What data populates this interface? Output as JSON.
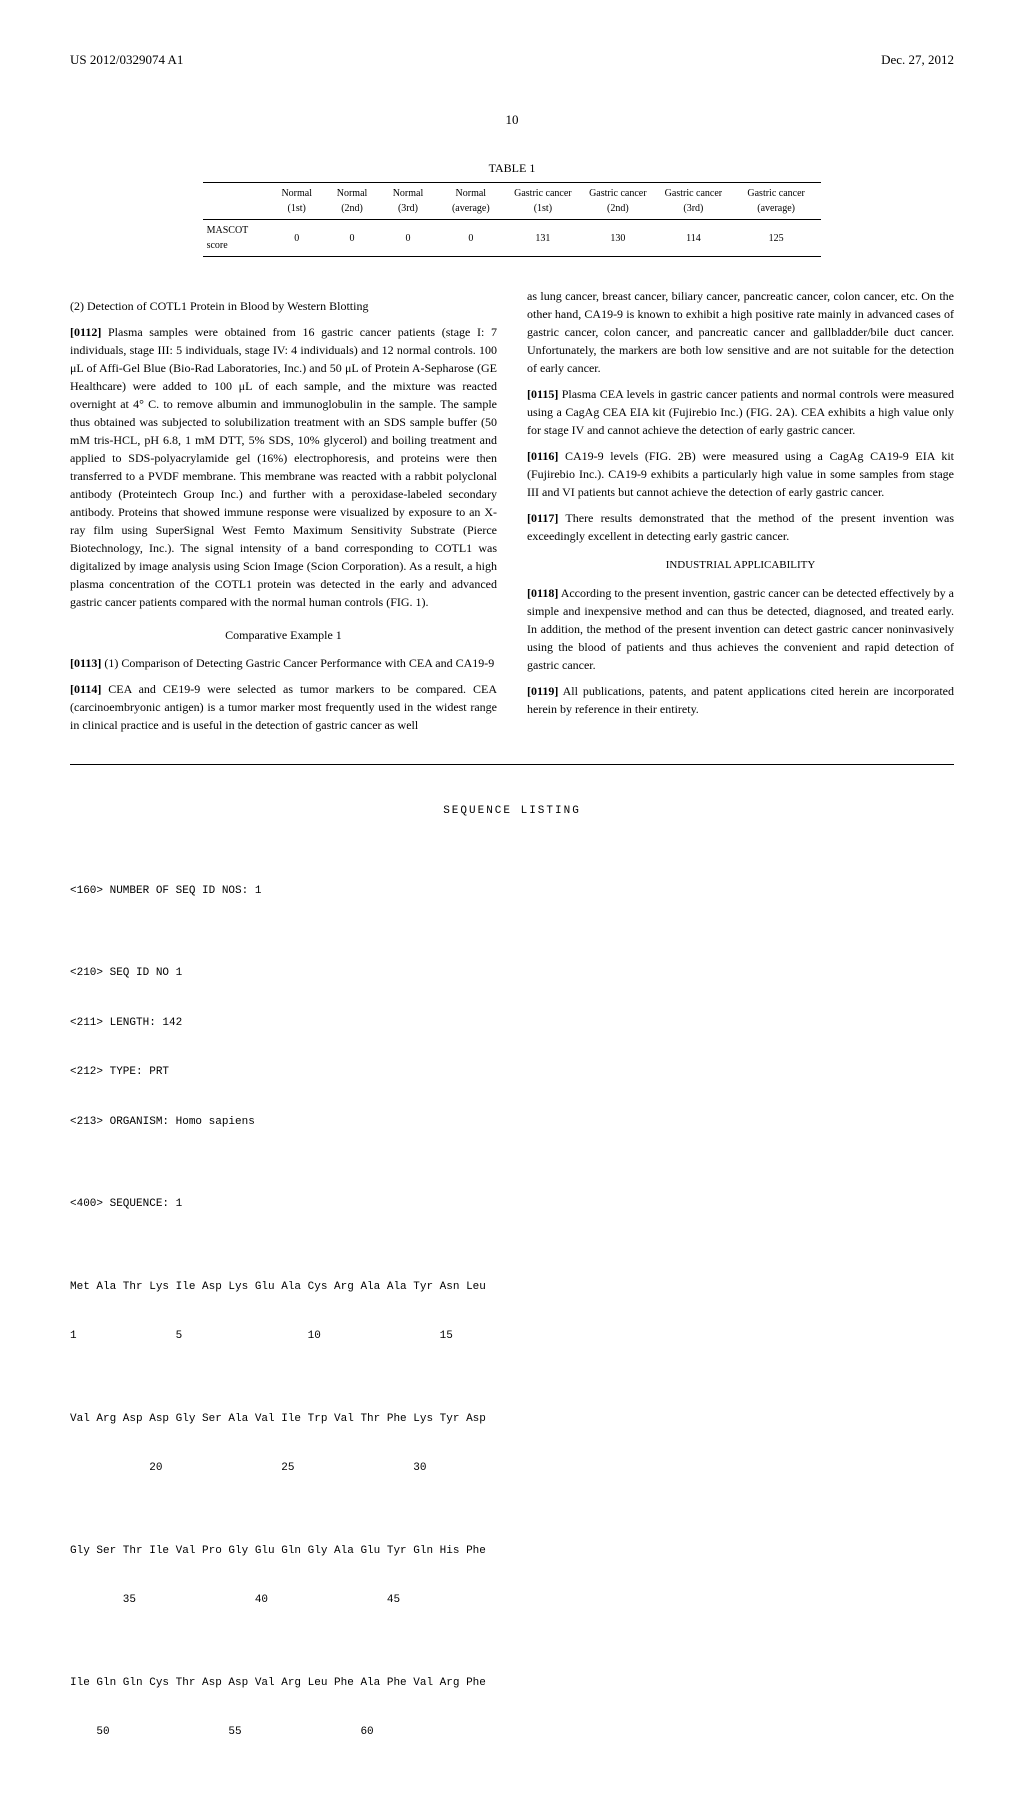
{
  "header": {
    "pub_number": "US 2012/0329074 A1",
    "pub_date": "Dec. 27, 2012",
    "page_number": "10"
  },
  "table1": {
    "caption": "TABLE 1",
    "columns": [
      "",
      "Normal (1st)",
      "Normal (2nd)",
      "Normal (3rd)",
      "Normal (average)",
      "Gastric cancer (1st)",
      "Gastric cancer (2nd)",
      "Gastric cancer (3rd)",
      "Gastric cancer (average)"
    ],
    "row_label": "MASCOT score",
    "values": [
      "0",
      "0",
      "0",
      "0",
      "131",
      "130",
      "114",
      "125"
    ]
  },
  "left_col": {
    "sec2_title": "(2) Detection of COTL1 Protein in Blood by Western Blotting",
    "p0112_num": "[0112]",
    "p0112": "Plasma samples were obtained from 16 gastric cancer patients (stage I: 7 individuals, stage III: 5 individuals, stage IV: 4 individuals) and 12 normal controls. 100 μL of Affi-Gel Blue (Bio-Rad Laboratories, Inc.) and 50 μL of Protein A-Sepharose (GE Healthcare) were added to 100 μL of each sample, and the mixture was reacted overnight at 4° C. to remove albumin and immunoglobulin in the sample. The sample thus obtained was subjected to solubilization treatment with an SDS sample buffer (50 mM tris-HCL, pH 6.8, 1 mM DTT, 5% SDS, 10% glycerol) and boiling treatment and applied to SDS-polyacrylamide gel (16%) electrophoresis, and proteins were then transferred to a PVDF membrane. This membrane was reacted with a rabbit polyclonal antibody (Proteintech Group Inc.) and further with a peroxidase-labeled secondary antibody. Proteins that showed immune response were visualized by exposure to an X-ray film using SuperSignal West Femto Maximum Sensitivity Substrate (Pierce Biotechnology, Inc.). The signal intensity of a band corresponding to COTL1 was digitalized by image analysis using Scion Image (Scion Corporation). As a result, a high plasma concentration of the COTL1 protein was detected in the early and advanced gastric cancer patients compared with the normal human controls (FIG. 1).",
    "comp_title": "Comparative Example 1",
    "p0113_num": "[0113]",
    "p0113": "(1) Comparison of Detecting Gastric Cancer Performance with CEA and CA19-9",
    "p0114_num": "[0114]",
    "p0114": "CEA and CE19-9 were selected as tumor markers to be compared. CEA (carcinoembryonic antigen) is a tumor marker most frequently used in the widest range in clinical practice and is useful in the detection of gastric cancer as well"
  },
  "right_col": {
    "p_cont": "as lung cancer, breast cancer, biliary cancer, pancreatic cancer, colon cancer, etc. On the other hand, CA19-9 is known to exhibit a high positive rate mainly in advanced cases of gastric cancer, colon cancer, and pancreatic cancer and gallbladder/bile duct cancer. Unfortunately, the markers are both low sensitive and are not suitable for the detection of early cancer.",
    "p0115_num": "[0115]",
    "p0115": "Plasma CEA levels in gastric cancer patients and normal controls were measured using a CagAg CEA EIA kit (Fujirebio Inc.) (FIG. 2A). CEA exhibits a high value only for stage IV and cannot achieve the detection of early gastric cancer.",
    "p0116_num": "[0116]",
    "p0116": "CA19-9 levels (FIG. 2B) were measured using a CagAg CA19-9 EIA kit (Fujirebio Inc.). CA19-9 exhibits a particularly high value in some samples from stage III and VI patients but cannot achieve the detection of early gastric cancer.",
    "p0117_num": "[0117]",
    "p0117": "There results demonstrated that the method of the present invention was exceedingly excellent in detecting early gastric cancer.",
    "ind_title": "INDUSTRIAL APPLICABILITY",
    "p0118_num": "[0118]",
    "p0118": "According to the present invention, gastric cancer can be detected effectively by a simple and inexpensive method and can thus be detected, diagnosed, and treated early. In addition, the method of the present invention can detect gastric cancer noninvasively using the blood of patients and thus achieves the convenient and rapid detection of gastric cancer.",
    "p0119_num": "[0119]",
    "p0119": "All publications, patents, and patent applications cited herein are incorporated herein by reference in their entirety."
  },
  "seq": {
    "title": "SEQUENCE LISTING",
    "line1": "<160> NUMBER OF SEQ ID NOS: 1",
    "line2": "<210> SEQ ID NO 1",
    "line3": "<211> LENGTH: 142",
    "line4": "<212> TYPE: PRT",
    "line5": "<213> ORGANISM: Homo sapiens",
    "line6": "<400> SEQUENCE: 1",
    "row1a": "Met Ala Thr Lys Ile Asp Lys Glu Ala Cys Arg Ala Ala Tyr Asn Leu",
    "row1b": "1               5                   10                  15",
    "row2a": "Val Arg Asp Asp Gly Ser Ala Val Ile Trp Val Thr Phe Lys Tyr Asp",
    "row2b": "            20                  25                  30",
    "row3a": "Gly Ser Thr Ile Val Pro Gly Glu Gln Gly Ala Glu Tyr Gln His Phe",
    "row3b": "        35                  40                  45",
    "row4a": "Ile Gln Gln Cys Thr Asp Asp Val Arg Leu Phe Ala Phe Val Arg Phe",
    "row4b": "    50                  55                  60"
  }
}
